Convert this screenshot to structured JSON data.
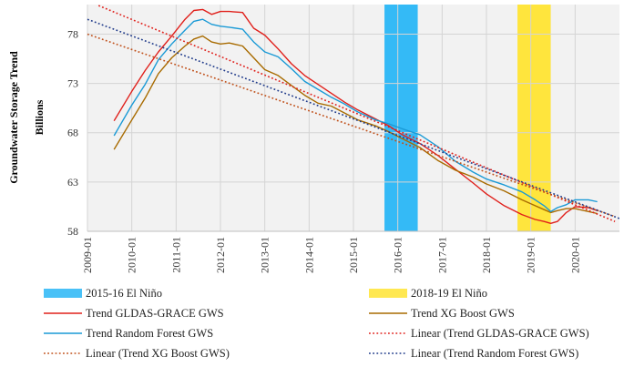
{
  "chart_data": {
    "type": "line",
    "ylabel": "Groundwater Storage Trend",
    "yunit": "Billions",
    "ylim": [
      58,
      81
    ],
    "yticks": [
      58,
      63,
      68,
      73,
      78
    ],
    "xlim": [
      2009.0,
      2021.0
    ],
    "xticks": [
      "2009-01",
      "2010-01",
      "2011-01",
      "2012-01",
      "2013-01",
      "2014-01",
      "2015-01",
      "2016-01",
      "2017-01",
      "2018-01",
      "2019-01",
      "2020-01"
    ],
    "grid": true,
    "legend_position": "bottom",
    "shaded_periods": [
      {
        "name": "2015-16 El Niño",
        "start": 2015.7,
        "end": 2016.45,
        "color": "#29b6f6"
      },
      {
        "name": "2018-19 El Niño",
        "start": 2018.7,
        "end": 2019.45,
        "color": "#ffe433"
      }
    ],
    "series": [
      {
        "name": "Trend GLDAS-GRACE GWS",
        "color": "#e0201b",
        "style": "solid",
        "x": [
          2009.6,
          2010.0,
          2010.3,
          2010.6,
          2010.9,
          2011.2,
          2011.4,
          2011.6,
          2011.8,
          2012.0,
          2012.2,
          2012.5,
          2012.75,
          2013.0,
          2013.3,
          2013.6,
          2013.9,
          2014.2,
          2014.5,
          2014.8,
          2015.1,
          2015.5,
          2015.8,
          2016.1,
          2016.5,
          2016.9,
          2017.3,
          2017.7,
          2018.0,
          2018.4,
          2018.8,
          2019.1,
          2019.3,
          2019.45,
          2019.6,
          2019.8,
          2020.0,
          2020.3,
          2020.5
        ],
        "y": [
          69.2,
          72.2,
          74.3,
          76.2,
          77.8,
          79.5,
          80.4,
          80.5,
          80.0,
          80.3,
          80.3,
          80.2,
          78.6,
          77.9,
          76.5,
          75.0,
          73.8,
          72.9,
          72.0,
          71.1,
          70.3,
          69.4,
          68.7,
          67.8,
          66.9,
          65.7,
          64.3,
          62.9,
          61.8,
          60.6,
          59.7,
          59.2,
          59.0,
          58.8,
          59.0,
          59.9,
          60.5,
          60.4,
          60.1
        ]
      },
      {
        "name": "Trend XG Boost GWS",
        "color": "#a86b00",
        "style": "solid",
        "x": [
          2009.6,
          2010.0,
          2010.3,
          2010.6,
          2010.9,
          2011.2,
          2011.4,
          2011.6,
          2011.8,
          2012.0,
          2012.2,
          2012.5,
          2012.75,
          2013.0,
          2013.3,
          2013.6,
          2013.9,
          2014.2,
          2014.5,
          2014.8,
          2015.1,
          2015.5,
          2015.8,
          2016.1,
          2016.5,
          2016.9,
          2017.3,
          2017.7,
          2018.0,
          2018.4,
          2018.8,
          2019.1,
          2019.3,
          2019.45,
          2019.6,
          2019.8,
          2020.0,
          2020.3,
          2020.5
        ],
        "y": [
          66.3,
          69.3,
          71.5,
          74.0,
          75.6,
          76.8,
          77.5,
          77.8,
          77.2,
          77.0,
          77.1,
          76.8,
          75.6,
          74.4,
          73.8,
          72.8,
          71.8,
          71.0,
          70.7,
          70.0,
          69.3,
          68.7,
          68.1,
          67.4,
          66.5,
          65.2,
          64.2,
          63.5,
          62.8,
          62.1,
          61.2,
          60.6,
          60.2,
          59.9,
          60.1,
          60.3,
          60.3,
          60.0,
          59.8
        ]
      },
      {
        "name": "Trend Random Forest GWS",
        "color": "#1a9ad6",
        "style": "solid",
        "x": [
          2009.6,
          2010.0,
          2010.3,
          2010.6,
          2010.9,
          2011.2,
          2011.4,
          2011.6,
          2011.8,
          2012.0,
          2012.2,
          2012.5,
          2012.75,
          2013.0,
          2013.3,
          2013.6,
          2013.9,
          2014.2,
          2014.5,
          2014.8,
          2015.1,
          2015.5,
          2015.8,
          2016.1,
          2016.5,
          2016.9,
          2017.3,
          2017.7,
          2018.0,
          2018.4,
          2018.8,
          2019.1,
          2019.3,
          2019.45,
          2019.6,
          2019.8,
          2020.0,
          2020.3,
          2020.5
        ],
        "y": [
          67.7,
          70.8,
          72.9,
          75.4,
          77.0,
          78.4,
          79.3,
          79.5,
          79.0,
          78.8,
          78.7,
          78.5,
          77.2,
          76.2,
          75.7,
          74.5,
          73.2,
          72.4,
          71.6,
          70.9,
          70.1,
          69.3,
          68.9,
          68.4,
          67.8,
          66.6,
          65.1,
          64.0,
          63.3,
          62.7,
          62.0,
          61.2,
          60.6,
          60.0,
          60.4,
          60.7,
          61.2,
          61.2,
          61.0
        ]
      },
      {
        "name": "Linear (Trend GLDAS-GRACE GWS)",
        "color": "#e0201b",
        "style": "dotted",
        "x": [
          2009.25,
          2020.9
        ],
        "y": [
          80.9,
          59.0
        ]
      },
      {
        "name": "Linear (Trend XG Boost GWS)",
        "color": "#c0501a",
        "style": "dotted",
        "x": [
          2009.0,
          2020.9
        ],
        "y": [
          78.0,
          59.5
        ]
      },
      {
        "name": "Linear (Trend Random Forest GWS)",
        "color": "#1f3a8a",
        "style": "dotted",
        "x": [
          2009.0,
          2021.0
        ],
        "y": [
          79.5,
          59.3
        ]
      }
    ],
    "legend_order": [
      "2015-16 El Niño",
      "2018-19 El Niño",
      "Trend GLDAS-GRACE GWS",
      "Trend XG Boost GWS",
      "Trend Random Forest GWS",
      "Linear (Trend GLDAS-GRACE GWS)",
      "Linear (Trend XG Boost GWS)",
      "Linear (Trend Random Forest GWS)"
    ]
  }
}
